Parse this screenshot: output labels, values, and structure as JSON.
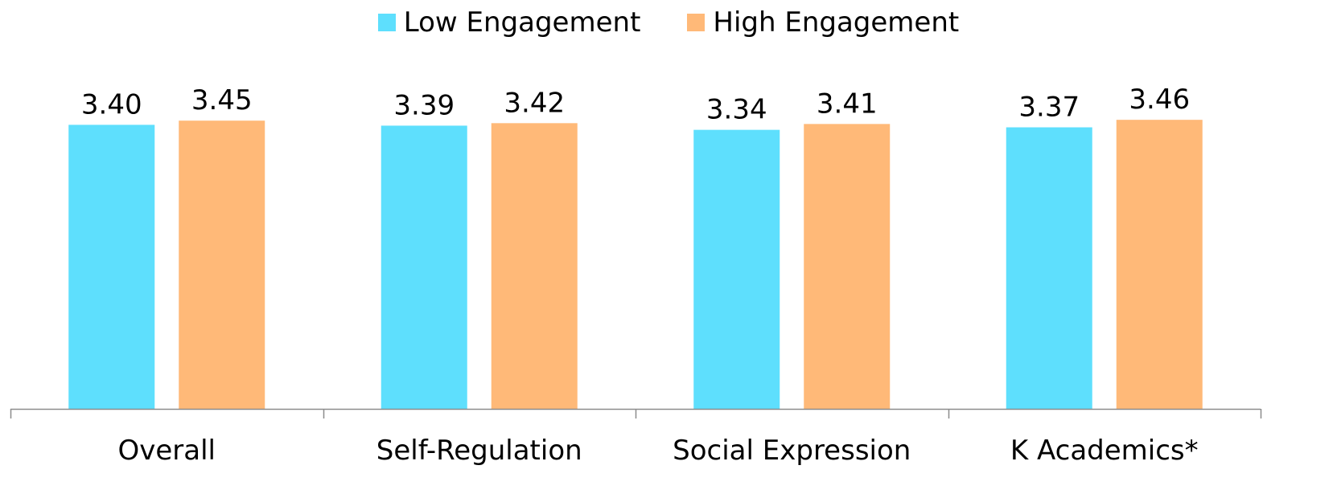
{
  "chart_data": {
    "type": "bar",
    "title": "",
    "xlabel": "",
    "ylabel": "",
    "categories": [
      "Overall",
      "Self-Regulation",
      "Social Expression",
      "K Academics*"
    ],
    "series": [
      {
        "name": "Low Engagement",
        "color": "#5EDFFD",
        "values": [
          3.4,
          3.39,
          3.34,
          3.37
        ],
        "labels": [
          "3.40",
          "3.39",
          "3.34",
          "3.37"
        ]
      },
      {
        "name": "High Engagement",
        "color": "#FFB978",
        "values": [
          3.45,
          3.42,
          3.41,
          3.46
        ],
        "labels": [
          "3.45",
          "3.42",
          "3.41",
          "3.46"
        ]
      }
    ],
    "ylim": [
      0,
      4.5
    ],
    "grid": false,
    "legend_position": "top-center",
    "axis_color": "#8C8C8C"
  }
}
